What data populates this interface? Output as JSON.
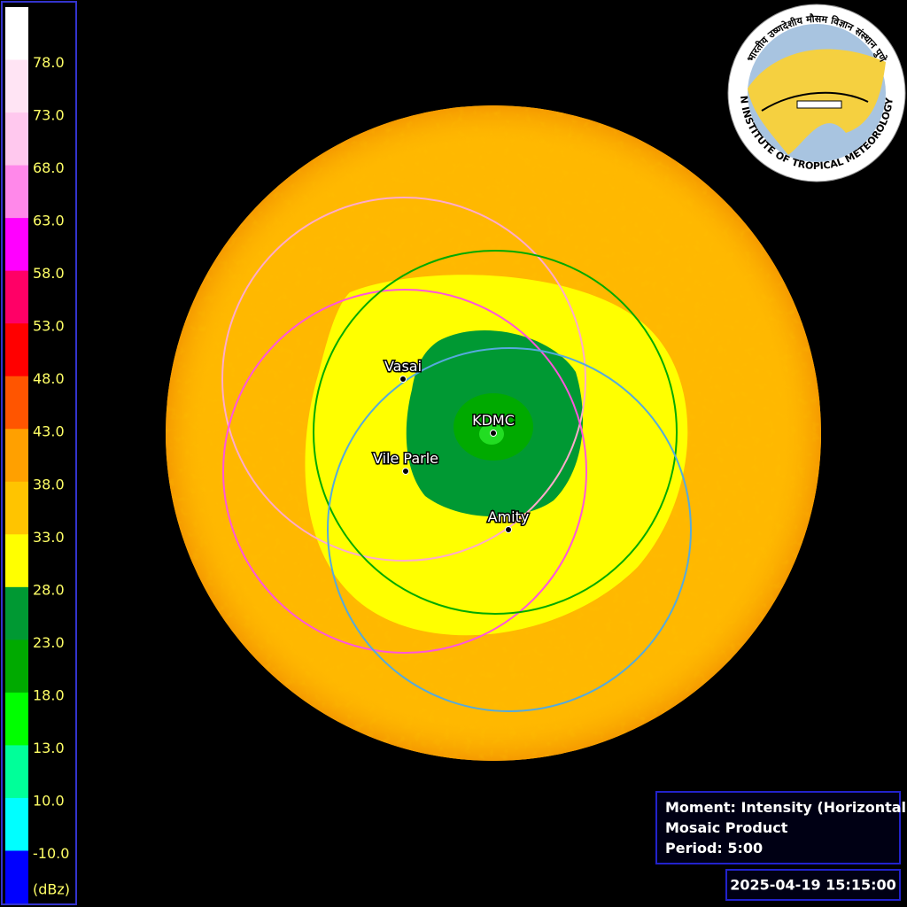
{
  "legend": {
    "colors": [
      "#ffffff",
      "#ffe4f4",
      "#ffc8ee",
      "#ff88ea",
      "#ff00ff",
      "#ff0066",
      "#ff0000",
      "#ff5500",
      "#ffa000",
      "#ffc400",
      "#ffff00",
      "#009933",
      "#00aa00",
      "#00ff00",
      "#00ff99",
      "#00ffff",
      "#0000ff"
    ],
    "labels": [
      "78.0",
      "73.0",
      "68.0",
      "63.0",
      "58.0",
      "53.0",
      "48.0",
      "43.0",
      "38.0",
      "33.0",
      "28.0",
      "23.0",
      "18.0",
      "13.0",
      "10.0",
      "-10.0"
    ],
    "unit": "(dBz)"
  },
  "stations": [
    {
      "name": "Vasai",
      "color": "#ffaacc"
    },
    {
      "name": "Vile Parle",
      "color": "#ff55dd"
    },
    {
      "name": "KDMC",
      "color": "#00aa00"
    },
    {
      "name": "Amity",
      "color": "#55aadd"
    }
  ],
  "info": {
    "lines": [
      "Moment: Intensity (Horizontal)",
      "Mosaic Product",
      "Period: 5:00"
    ]
  },
  "timestamp": "2025-04-19 15:15:00",
  "logo": {
    "hindi": "भारतीय उष्णदेशीय मौसम विज्ञान संस्थान पुणे",
    "english": "INDIAN INSTITUTE OF TROPICAL METEOROLOGY PUNE"
  }
}
